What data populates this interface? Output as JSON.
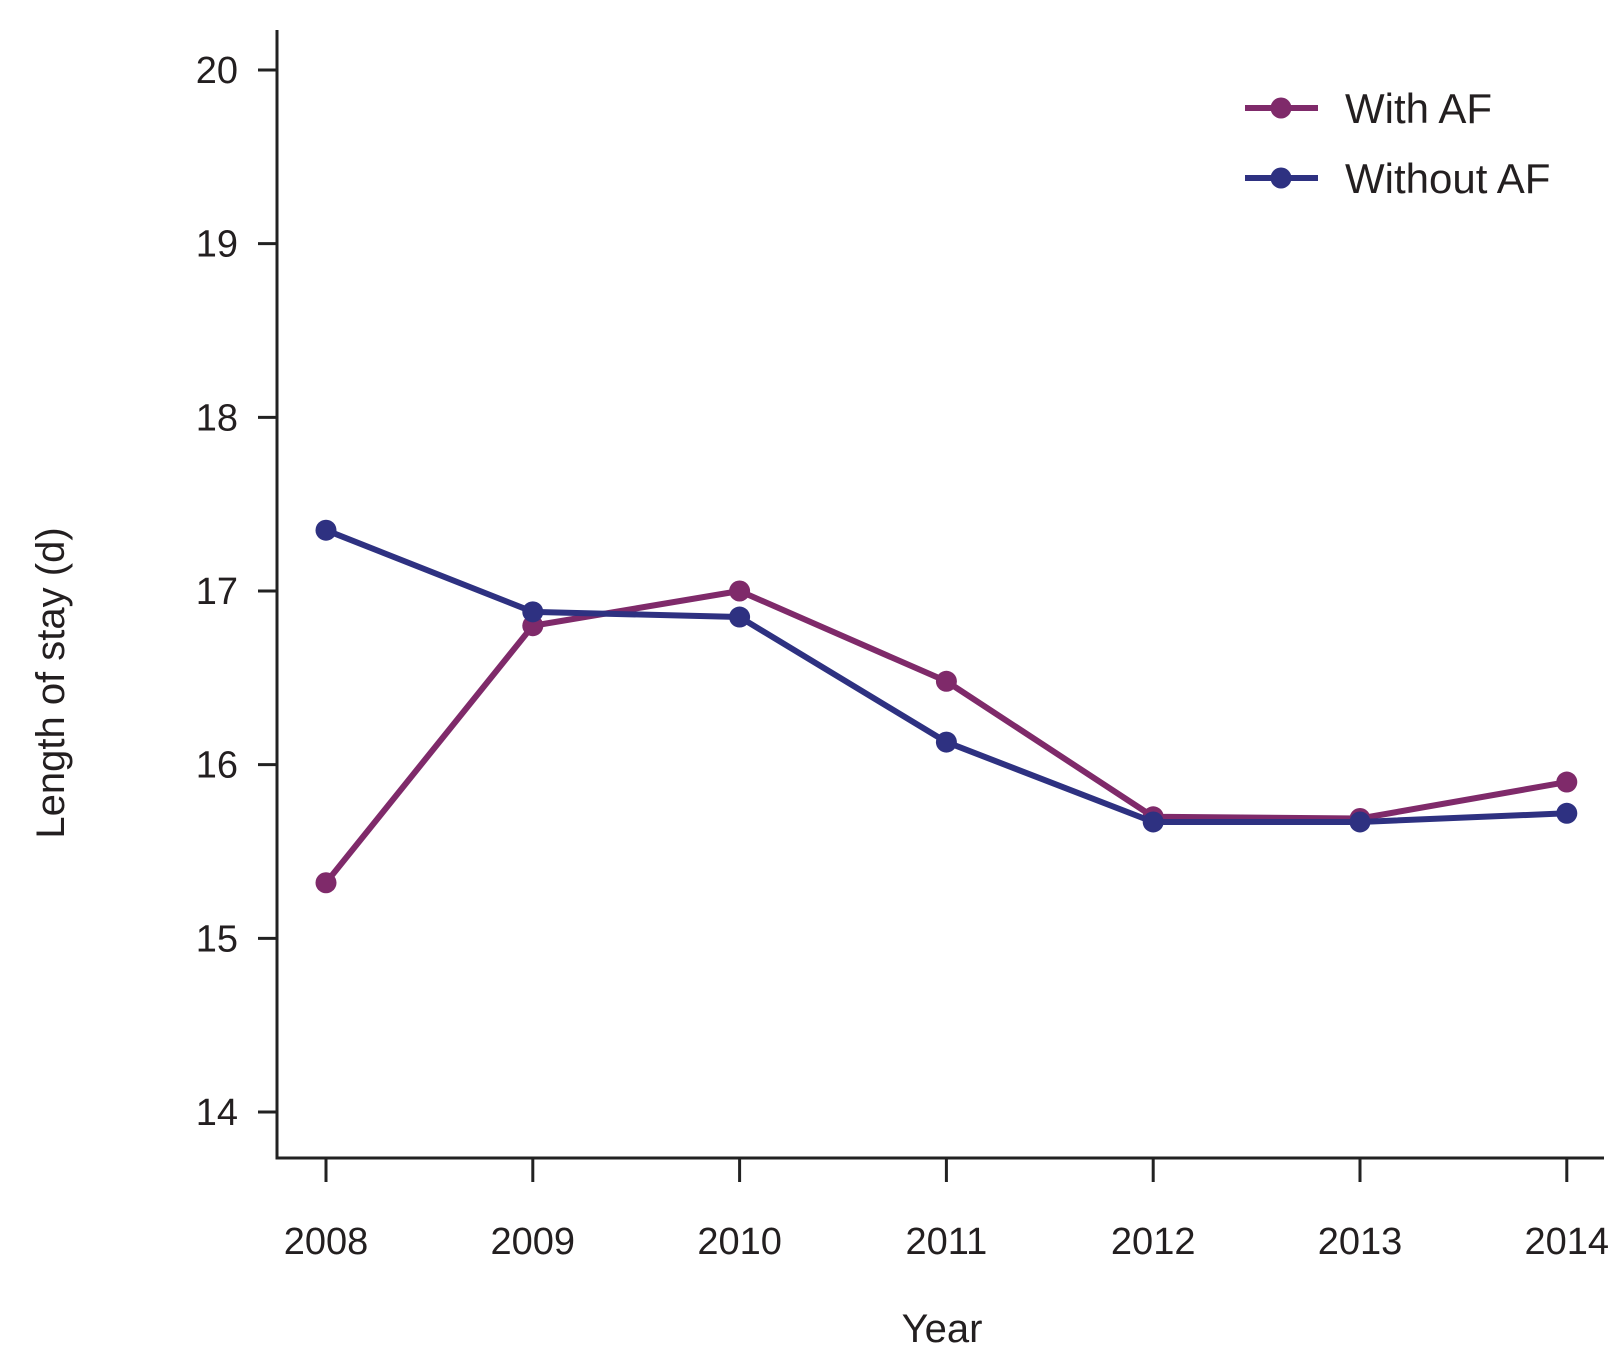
{
  "chart_data": {
    "type": "line",
    "title": "",
    "xlabel": "Year",
    "ylabel": "Length of stay (d)",
    "categories": [
      "2008",
      "2009",
      "2010",
      "2011",
      "2012",
      "2013",
      "2014"
    ],
    "ylim": [
      14,
      20
    ],
    "yticks": [
      14,
      15,
      16,
      17,
      18,
      19,
      20
    ],
    "grid": false,
    "legend_position": "top-right",
    "series": [
      {
        "name": "With AF",
        "color": "#7f2a6a",
        "values": [
          15.32,
          16.8,
          17.0,
          16.48,
          15.7,
          15.69,
          15.9
        ]
      },
      {
        "name": "Without AF",
        "color": "#2e3181",
        "values": [
          17.35,
          16.88,
          16.85,
          16.13,
          15.67,
          15.67,
          15.72
        ]
      }
    ]
  }
}
